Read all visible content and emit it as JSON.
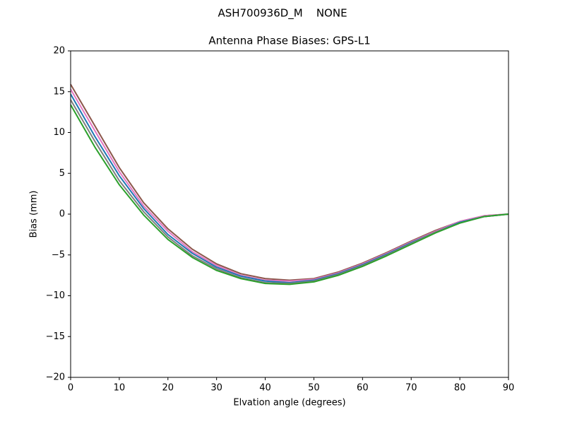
{
  "chart_data": {
    "type": "line",
    "suptitle": "ASH700936D_M    NONE",
    "title": "Antenna Phase Biases: GPS-L1",
    "xlabel": "Elvation angle (degrees)",
    "ylabel": "Bias (mm)",
    "x": [
      0,
      5,
      10,
      15,
      20,
      25,
      30,
      35,
      40,
      45,
      50,
      55,
      60,
      65,
      70,
      75,
      80,
      85,
      90
    ],
    "series": [
      {
        "color": "#8c564b",
        "values": [
          15.9,
          10.8,
          5.7,
          1.4,
          -1.8,
          -4.3,
          -6.1,
          -7.3,
          -7.9,
          -8.1,
          -7.9,
          -7.1,
          -6.0,
          -4.7,
          -3.3,
          -2.0,
          -0.9,
          -0.2,
          0
        ]
      },
      {
        "color": "#e377c2",
        "values": [
          15.3,
          10.2,
          5.2,
          1.0,
          -2.1,
          -4.6,
          -6.3,
          -7.5,
          -8.1,
          -8.2,
          -8.0,
          -7.2,
          -6.1,
          -4.8,
          -3.4,
          -2.1,
          -0.9,
          -0.2,
          0
        ]
      },
      {
        "color": "#1f77b4",
        "values": [
          14.7,
          9.5,
          4.7,
          0.7,
          -2.5,
          -4.8,
          -6.5,
          -7.6,
          -8.2,
          -8.4,
          -8.1,
          -7.3,
          -6.2,
          -4.9,
          -3.5,
          -2.2,
          -1.0,
          -0.3,
          0
        ]
      },
      {
        "color": "#7f7f7f",
        "values": [
          14.0,
          8.9,
          4.1,
          0.3,
          -2.8,
          -5.1,
          -6.7,
          -7.8,
          -8.4,
          -8.5,
          -8.2,
          -7.4,
          -6.3,
          -5.0,
          -3.6,
          -2.2,
          -1.1,
          -0.3,
          0
        ]
      },
      {
        "color": "#2ca02c",
        "values": [
          13.4,
          8.2,
          3.6,
          -0.1,
          -3.1,
          -5.3,
          -6.9,
          -7.9,
          -8.5,
          -8.6,
          -8.3,
          -7.5,
          -6.4,
          -5.1,
          -3.7,
          -2.3,
          -1.1,
          -0.3,
          0
        ]
      }
    ],
    "xlim": [
      0,
      90
    ],
    "xticks": [
      0,
      10,
      20,
      30,
      40,
      50,
      60,
      70,
      80,
      90
    ],
    "ylim": [
      -20,
      20
    ],
    "yticks": [
      {
        "value": -20,
        "label": "−20"
      },
      {
        "value": -15,
        "label": "−15"
      },
      {
        "value": -10,
        "label": "−10"
      },
      {
        "value": -5,
        "label": "−5"
      },
      0,
      5,
      10,
      15,
      20
    ],
    "grid": false
  }
}
